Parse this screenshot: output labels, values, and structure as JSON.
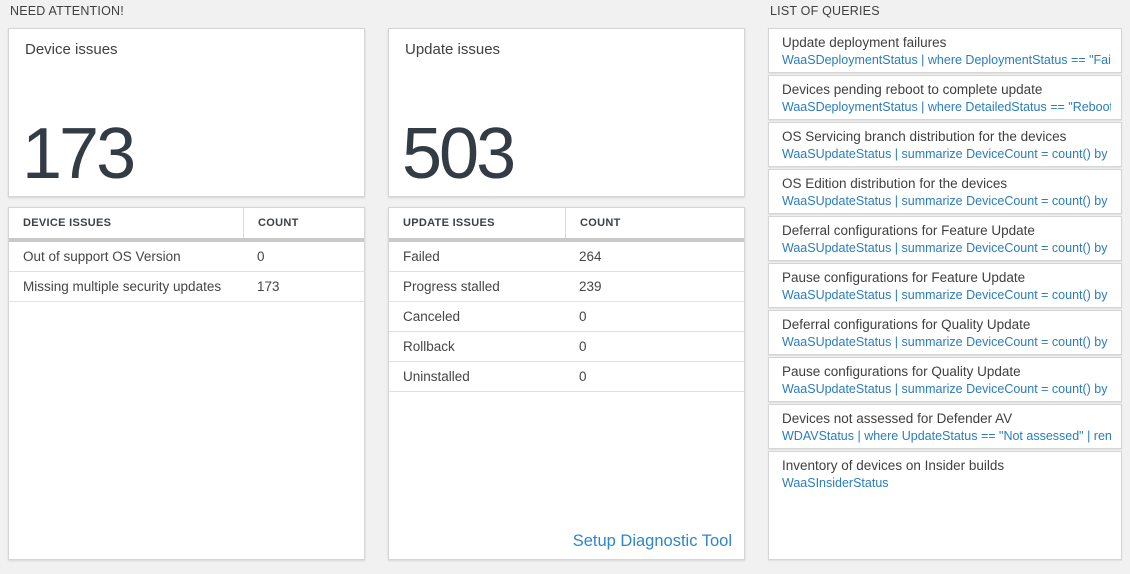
{
  "sections": {
    "need_attention_header": "NEED ATTENTION!",
    "queries_header": "LIST OF QUERIES"
  },
  "device_tile": {
    "title": "Device issues",
    "value": "173"
  },
  "update_tile": {
    "title": "Update issues",
    "value": "503"
  },
  "device_table": {
    "headers": [
      "DEVICE ISSUES",
      "COUNT"
    ],
    "rows": [
      {
        "label": "Out of support OS Version",
        "count": "0"
      },
      {
        "label": "Missing multiple security updates",
        "count": "173"
      }
    ]
  },
  "update_table": {
    "headers": [
      "UPDATE ISSUES",
      "COUNT"
    ],
    "rows": [
      {
        "label": "Failed",
        "count": "264"
      },
      {
        "label": "Progress stalled",
        "count": "239"
      },
      {
        "label": "Canceled",
        "count": "0"
      },
      {
        "label": "Rollback",
        "count": "0"
      },
      {
        "label": "Uninstalled",
        "count": "0"
      }
    ],
    "link_label": "Setup Diagnostic Tool"
  },
  "queries": {
    "items": [
      {
        "title": "Update deployment failures",
        "query": "WaaSDeploymentStatus | where DeploymentStatus == \"Failed\" |..."
      },
      {
        "title": "Devices pending reboot to complete update",
        "query": "WaaSDeploymentStatus | where DetailedStatus == \"Reboot pend..."
      },
      {
        "title": "OS Servicing branch distribution for the devices",
        "query": "WaaSUpdateStatus | summarize DeviceCount = count() by OSSer..."
      },
      {
        "title": "OS Edition distribution for the devices",
        "query": "WaaSUpdateStatus | summarize DeviceCount = count() by OSEdit..."
      },
      {
        "title": "Deferral configurations for Feature Update",
        "query": "WaaSUpdateStatus | summarize DeviceCount = count() by Featur..."
      },
      {
        "title": "Pause configurations for Feature Update",
        "query": "WaaSUpdateStatus | summarize DeviceCount = count() by Featur..."
      },
      {
        "title": "Deferral configurations for Quality Update",
        "query": "WaaSUpdateStatus | summarize DeviceCount = count() by Qualit..."
      },
      {
        "title": "Pause configurations for Quality Update",
        "query": "WaaSUpdateStatus | summarize DeviceCount = count() by Qualit..."
      },
      {
        "title": "Devices not assessed for Defender AV",
        "query": "WDAVStatus | where UpdateStatus == \"Not assessed\" | render ta..."
      },
      {
        "title": "Inventory of devices on Insider builds",
        "query": "WaaSInsiderStatus"
      }
    ]
  },
  "colors": {
    "query_blue": "#2b7cbe",
    "link_blue": "#2e86c8",
    "big_number": "#333b45",
    "page_background": "#f1f1f1",
    "thick_divider": "#c9c9c9"
  }
}
